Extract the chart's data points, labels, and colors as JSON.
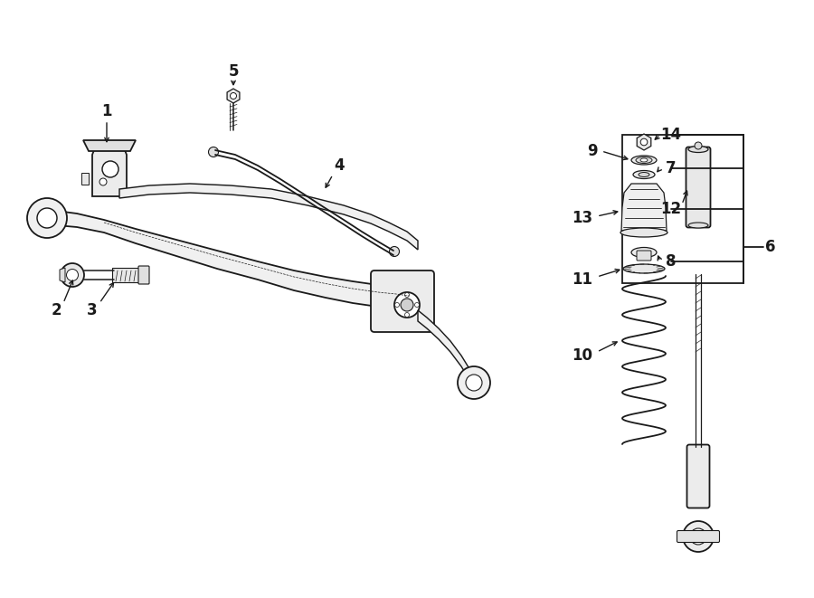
{
  "bg_color": "#ffffff",
  "lc": "#1a1a1a",
  "figsize": [
    9.0,
    6.61
  ],
  "dpi": 100,
  "label_fs": 12,
  "lw_main": 1.3,
  "lw_thin": 0.8
}
